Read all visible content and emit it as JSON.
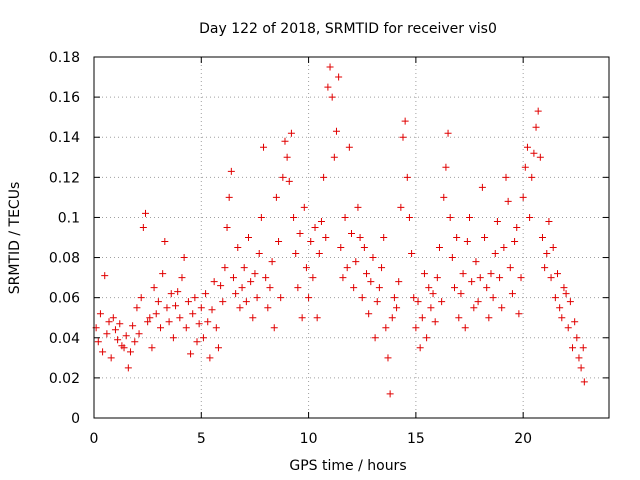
{
  "chart_data": {
    "type": "scatter",
    "title": "Day 122 of 2018, SRMTID for receiver vis0",
    "xlabel": "GPS time / hours",
    "ylabel": "SRMTID / TECUs",
    "xlim": [
      0,
      24
    ],
    "ylim": [
      0,
      0.18
    ],
    "xticks": [
      0,
      5,
      10,
      15,
      20
    ],
    "xtick_labels": [
      "0",
      "5",
      "10",
      "15",
      "20"
    ],
    "yticks": [
      0,
      0.02,
      0.04,
      0.06,
      0.08,
      0.1,
      0.12,
      0.14,
      0.16,
      0.18
    ],
    "ytick_labels": [
      "0",
      "0.02",
      "0.04",
      "0.06",
      "0.08",
      "0.1",
      "0.12",
      "0.14",
      "0.16",
      "0.18"
    ],
    "grid": true,
    "marker": "+",
    "color": "#e00000",
    "series": [
      {
        "name": "vis0",
        "points": [
          [
            0.1,
            0.045
          ],
          [
            0.2,
            0.038
          ],
          [
            0.3,
            0.052
          ],
          [
            0.4,
            0.033
          ],
          [
            0.5,
            0.071
          ],
          [
            0.6,
            0.042
          ],
          [
            0.7,
            0.048
          ],
          [
            0.8,
            0.03
          ],
          [
            0.9,
            0.05
          ],
          [
            1.0,
            0.044
          ],
          [
            1.1,
            0.039
          ],
          [
            1.2,
            0.047
          ],
          [
            1.3,
            0.036
          ],
          [
            1.4,
            0.035
          ],
          [
            1.5,
            0.041
          ],
          [
            1.6,
            0.025
          ],
          [
            1.7,
            0.033
          ],
          [
            1.8,
            0.046
          ],
          [
            1.9,
            0.038
          ],
          [
            2.0,
            0.055
          ],
          [
            2.1,
            0.042
          ],
          [
            2.2,
            0.06
          ],
          [
            2.3,
            0.095
          ],
          [
            2.4,
            0.102
          ],
          [
            2.5,
            0.048
          ],
          [
            2.6,
            0.05
          ],
          [
            2.7,
            0.035
          ],
          [
            2.8,
            0.065
          ],
          [
            2.9,
            0.052
          ],
          [
            3.0,
            0.058
          ],
          [
            3.1,
            0.045
          ],
          [
            3.2,
            0.072
          ],
          [
            3.3,
            0.088
          ],
          [
            3.4,
            0.055
          ],
          [
            3.5,
            0.048
          ],
          [
            3.6,
            0.062
          ],
          [
            3.7,
            0.04
          ],
          [
            3.8,
            0.056
          ],
          [
            3.9,
            0.063
          ],
          [
            4.0,
            0.05
          ],
          [
            4.1,
            0.07
          ],
          [
            4.2,
            0.08
          ],
          [
            4.3,
            0.045
          ],
          [
            4.4,
            0.058
          ],
          [
            4.5,
            0.032
          ],
          [
            4.6,
            0.052
          ],
          [
            4.7,
            0.06
          ],
          [
            4.8,
            0.038
          ],
          [
            4.9,
            0.047
          ],
          [
            5.0,
            0.055
          ],
          [
            5.1,
            0.04
          ],
          [
            5.2,
            0.062
          ],
          [
            5.3,
            0.048
          ],
          [
            5.4,
            0.03
          ],
          [
            5.5,
            0.054
          ],
          [
            5.6,
            0.068
          ],
          [
            5.7,
            0.045
          ],
          [
            5.8,
            0.035
          ],
          [
            5.9,
            0.066
          ],
          [
            6.0,
            0.058
          ],
          [
            6.1,
            0.075
          ],
          [
            6.2,
            0.095
          ],
          [
            6.3,
            0.11
          ],
          [
            6.4,
            0.123
          ],
          [
            6.5,
            0.07
          ],
          [
            6.6,
            0.062
          ],
          [
            6.7,
            0.085
          ],
          [
            6.8,
            0.055
          ],
          [
            6.9,
            0.065
          ],
          [
            7.0,
            0.075
          ],
          [
            7.1,
            0.058
          ],
          [
            7.2,
            0.09
          ],
          [
            7.3,
            0.068
          ],
          [
            7.4,
            0.05
          ],
          [
            7.5,
            0.072
          ],
          [
            7.6,
            0.06
          ],
          [
            7.7,
            0.082
          ],
          [
            7.8,
            0.1
          ],
          [
            7.9,
            0.135
          ],
          [
            8.0,
            0.07
          ],
          [
            8.1,
            0.055
          ],
          [
            8.2,
            0.065
          ],
          [
            8.3,
            0.078
          ],
          [
            8.4,
            0.045
          ],
          [
            8.5,
            0.11
          ],
          [
            8.6,
            0.088
          ],
          [
            8.7,
            0.06
          ],
          [
            8.8,
            0.12
          ],
          [
            8.9,
            0.138
          ],
          [
            9.0,
            0.13
          ],
          [
            9.1,
            0.118
          ],
          [
            9.2,
            0.142
          ],
          [
            9.3,
            0.1
          ],
          [
            9.4,
            0.082
          ],
          [
            9.5,
            0.065
          ],
          [
            9.6,
            0.092
          ],
          [
            9.7,
            0.05
          ],
          [
            9.8,
            0.105
          ],
          [
            9.9,
            0.075
          ],
          [
            10.0,
            0.06
          ],
          [
            10.1,
            0.088
          ],
          [
            10.2,
            0.07
          ],
          [
            10.3,
            0.095
          ],
          [
            10.4,
            0.05
          ],
          [
            10.5,
            0.082
          ],
          [
            10.6,
            0.098
          ],
          [
            10.7,
            0.12
          ],
          [
            10.8,
            0.09
          ],
          [
            10.9,
            0.165
          ],
          [
            11.0,
            0.175
          ],
          [
            11.1,
            0.16
          ],
          [
            11.2,
            0.13
          ],
          [
            11.3,
            0.143
          ],
          [
            11.4,
            0.17
          ],
          [
            11.5,
            0.085
          ],
          [
            11.6,
            0.07
          ],
          [
            11.7,
            0.1
          ],
          [
            11.8,
            0.075
          ],
          [
            11.9,
            0.135
          ],
          [
            12.0,
            0.092
          ],
          [
            12.1,
            0.065
          ],
          [
            12.2,
            0.078
          ],
          [
            12.3,
            0.105
          ],
          [
            12.4,
            0.09
          ],
          [
            12.5,
            0.06
          ],
          [
            12.6,
            0.085
          ],
          [
            12.7,
            0.072
          ],
          [
            12.8,
            0.052
          ],
          [
            12.9,
            0.068
          ],
          [
            13.0,
            0.08
          ],
          [
            13.1,
            0.04
          ],
          [
            13.2,
            0.058
          ],
          [
            13.3,
            0.065
          ],
          [
            13.4,
            0.075
          ],
          [
            13.5,
            0.09
          ],
          [
            13.6,
            0.045
          ],
          [
            13.7,
            0.03
          ],
          [
            13.8,
            0.012
          ],
          [
            13.9,
            0.05
          ],
          [
            14.0,
            0.06
          ],
          [
            14.1,
            0.055
          ],
          [
            14.2,
            0.068
          ],
          [
            14.3,
            0.105
          ],
          [
            14.4,
            0.14
          ],
          [
            14.5,
            0.148
          ],
          [
            14.6,
            0.12
          ],
          [
            14.7,
            0.1
          ],
          [
            14.8,
            0.082
          ],
          [
            14.9,
            0.06
          ],
          [
            15.0,
            0.045
          ],
          [
            15.1,
            0.058
          ],
          [
            15.2,
            0.035
          ],
          [
            15.3,
            0.05
          ],
          [
            15.4,
            0.072
          ],
          [
            15.5,
            0.04
          ],
          [
            15.6,
            0.065
          ],
          [
            15.7,
            0.055
          ],
          [
            15.8,
            0.062
          ],
          [
            15.9,
            0.048
          ],
          [
            16.0,
            0.07
          ],
          [
            16.1,
            0.085
          ],
          [
            16.2,
            0.058
          ],
          [
            16.3,
            0.11
          ],
          [
            16.4,
            0.125
          ],
          [
            16.5,
            0.142
          ],
          [
            16.6,
            0.1
          ],
          [
            16.7,
            0.08
          ],
          [
            16.8,
            0.065
          ],
          [
            16.9,
            0.09
          ],
          [
            17.0,
            0.05
          ],
          [
            17.1,
            0.062
          ],
          [
            17.2,
            0.072
          ],
          [
            17.3,
            0.045
          ],
          [
            17.4,
            0.088
          ],
          [
            17.5,
            0.1
          ],
          [
            17.6,
            0.068
          ],
          [
            17.7,
            0.055
          ],
          [
            17.8,
            0.078
          ],
          [
            17.9,
            0.058
          ],
          [
            18.0,
            0.07
          ],
          [
            18.1,
            0.115
          ],
          [
            18.2,
            0.09
          ],
          [
            18.3,
            0.065
          ],
          [
            18.4,
            0.05
          ],
          [
            18.5,
            0.072
          ],
          [
            18.6,
            0.06
          ],
          [
            18.7,
            0.082
          ],
          [
            18.8,
            0.098
          ],
          [
            18.9,
            0.07
          ],
          [
            19.0,
            0.055
          ],
          [
            19.1,
            0.085
          ],
          [
            19.2,
            0.12
          ],
          [
            19.3,
            0.108
          ],
          [
            19.4,
            0.075
          ],
          [
            19.5,
            0.062
          ],
          [
            19.6,
            0.088
          ],
          [
            19.7,
            0.095
          ],
          [
            19.8,
            0.052
          ],
          [
            19.9,
            0.07
          ],
          [
            20.0,
            0.11
          ],
          [
            20.1,
            0.125
          ],
          [
            20.2,
            0.135
          ],
          [
            20.3,
            0.1
          ],
          [
            20.4,
            0.12
          ],
          [
            20.5,
            0.132
          ],
          [
            20.6,
            0.145
          ],
          [
            20.7,
            0.153
          ],
          [
            20.8,
            0.13
          ],
          [
            20.9,
            0.09
          ],
          [
            21.0,
            0.075
          ],
          [
            21.1,
            0.082
          ],
          [
            21.2,
            0.098
          ],
          [
            21.3,
            0.07
          ],
          [
            21.4,
            0.085
          ],
          [
            21.5,
            0.06
          ],
          [
            21.6,
            0.072
          ],
          [
            21.7,
            0.055
          ],
          [
            21.8,
            0.05
          ],
          [
            21.9,
            0.065
          ],
          [
            22.0,
            0.062
          ],
          [
            22.1,
            0.045
          ],
          [
            22.2,
            0.058
          ],
          [
            22.3,
            0.035
          ],
          [
            22.4,
            0.048
          ],
          [
            22.5,
            0.04
          ],
          [
            22.6,
            0.03
          ],
          [
            22.7,
            0.025
          ],
          [
            22.8,
            0.035
          ],
          [
            22.85,
            0.018
          ]
        ]
      }
    ]
  }
}
